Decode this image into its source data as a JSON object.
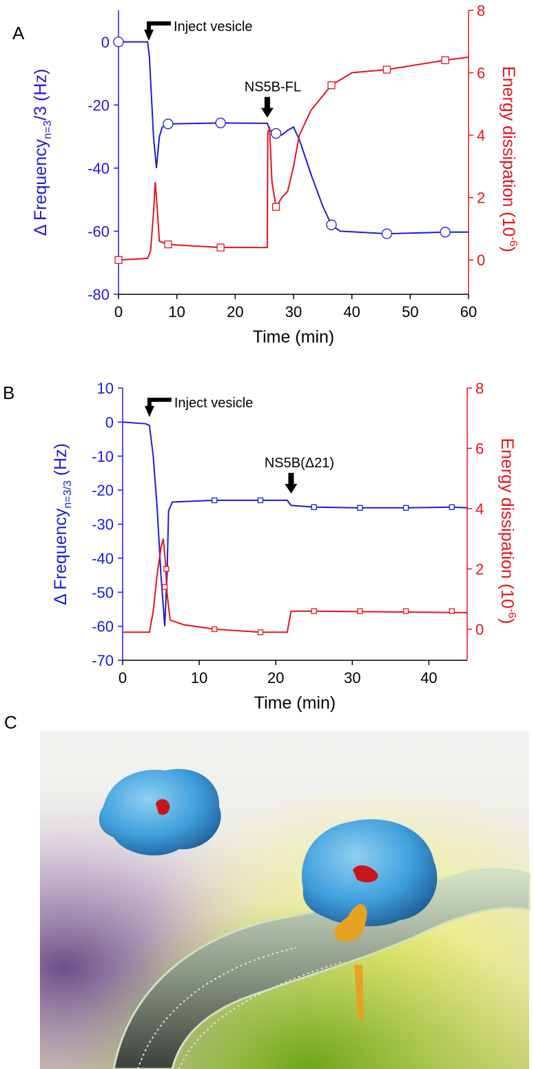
{
  "chart_data": [
    {
      "type": "line",
      "panel_label": "A",
      "x_label": "Time (min)",
      "y_label": {
        "text": "Δ Frequency",
        "sub": "n=3",
        "tail": "/3 (Hz)"
      },
      "y2_label": {
        "text": "Energy dissipation (10",
        "sup": "-6",
        "tail": ")"
      },
      "xlim": [
        0,
        60
      ],
      "xticks": [
        0,
        10,
        20,
        30,
        40,
        50,
        60
      ],
      "ylim": [
        -80,
        10
      ],
      "yticks": [
        -80,
        -60,
        -40,
        -20,
        0
      ],
      "y2lim": [
        -1.1,
        8
      ],
      "y2ticks": [
        0,
        2,
        4,
        6,
        8
      ],
      "y_color": "#1c1cd6",
      "y2_color": "#e3141c",
      "series": [
        {
          "color": "#1c1cd6",
          "axis": "y",
          "marker": "circle",
          "x": [
            0,
            5,
            5.3,
            6,
            6.5,
            7,
            7.5,
            8.5,
            17.5,
            25.5,
            26,
            27,
            28,
            29,
            30,
            31,
            33,
            35,
            36.5,
            38,
            46,
            56,
            60
          ],
          "values": [
            0,
            0,
            -5,
            -30,
            -40,
            -30,
            -27,
            -26,
            -25.7,
            -25.8,
            -28,
            -29,
            -29.5,
            -28,
            -27,
            -31,
            -42,
            -52,
            -58,
            -60,
            -60.8,
            -60.3,
            -60.3
          ],
          "marker_x": [
            0,
            8.5,
            17.5,
            27,
            36.5,
            46,
            56
          ],
          "marker_values": [
            0,
            -26,
            -25.7,
            -29,
            -58,
            -60.8,
            -60.3
          ]
        },
        {
          "color": "#e3141c",
          "axis": "y2",
          "marker": "square",
          "x": [
            0,
            5,
            5.5,
            6,
            6.3,
            6.7,
            7,
            8.5,
            17.5,
            25.5,
            25.6,
            25.9,
            26.3,
            27,
            28,
            29,
            30,
            31,
            33,
            36.5,
            40,
            46,
            56,
            60
          ],
          "values": [
            0,
            0.05,
            0.3,
            1.5,
            2.5,
            1.5,
            0.6,
            0.5,
            0.4,
            0.4,
            4.1,
            4.2,
            2.5,
            1.7,
            2,
            2.2,
            3,
            4,
            4.8,
            5.6,
            6,
            6.1,
            6.4,
            6.5
          ],
          "marker_x": [
            0,
            8.5,
            17.5,
            27,
            36.5,
            46,
            56
          ],
          "marker_values": [
            0,
            0.5,
            0.4,
            1.7,
            5.6,
            6.1,
            6.4
          ]
        }
      ],
      "annotations": [
        {
          "text": "Inject vesicle",
          "x": 5.2,
          "y": 0.4
        },
        {
          "text": "NS5B-FL",
          "x": 25.5,
          "y": -24
        }
      ]
    },
    {
      "type": "line",
      "panel_label": "B",
      "x_label": "Time (min)",
      "y_label": {
        "text": "Δ Frequency",
        "sub": "n=3/3",
        "tail": " (Hz)"
      },
      "y2_label": {
        "text": "Energy dissipation (10",
        "sup": "-6",
        "tail": ")"
      },
      "xlim": [
        0,
        45
      ],
      "xticks": [
        0,
        10,
        20,
        30,
        40
      ],
      "ylim": [
        -70,
        10
      ],
      "yticks": [
        -70,
        -60,
        -50,
        -40,
        -30,
        -20,
        -10,
        0,
        10
      ],
      "y2lim": [
        -1.03,
        8
      ],
      "y2ticks": [
        0,
        2,
        4,
        6,
        8
      ],
      "y_color": "#1c1cd6",
      "y2_color": "#e3141c",
      "series": [
        {
          "color": "#1c1cd6",
          "axis": "y",
          "marker": "square",
          "x": [
            0,
            3,
            3.5,
            4,
            4.5,
            5,
            5.5,
            5.8,
            6,
            6.5,
            12,
            18,
            21.5,
            22,
            25,
            31,
            37,
            43,
            45
          ],
          "values": [
            0,
            -0.5,
            -1,
            -10,
            -25,
            -45,
            -60,
            -45,
            -26,
            -23.5,
            -23,
            -23,
            -23,
            -24.5,
            -25,
            -25.2,
            -25.2,
            -25,
            -25.2
          ],
          "marker_x": [
            12,
            18,
            25,
            31,
            37,
            43
          ],
          "marker_values": [
            -23,
            -23,
            -25,
            -25.2,
            -25.2,
            -25
          ]
        },
        {
          "color": "#e3141c",
          "axis": "y2",
          "marker": "square",
          "x": [
            0,
            3.5,
            4,
            4.5,
            5,
            5.3,
            5.6,
            5.8,
            6.2,
            8,
            12,
            18,
            21.5,
            22,
            25,
            45
          ],
          "values": [
            -0.1,
            -0.1,
            0.6,
            1.8,
            2.7,
            3,
            2.2,
            1.2,
            0.3,
            0.15,
            0,
            -0.1,
            -0.1,
            0.6,
            0.6,
            0.55
          ],
          "marker_x": [
            5.7,
            5.5,
            12,
            18,
            25,
            31,
            37,
            43
          ],
          "marker_values": [
            2,
            1.4,
            0,
            -0.1,
            0.6,
            0.6,
            0.6,
            0.6
          ]
        }
      ],
      "annotations": [
        {
          "text": "Inject vesicle",
          "x": 3.5,
          "y": 1.5
        },
        {
          "text": "NS5B(Δ21)",
          "x": 22,
          "y": -21
        }
      ]
    }
  ],
  "illustration": {
    "panel_label": "C"
  }
}
